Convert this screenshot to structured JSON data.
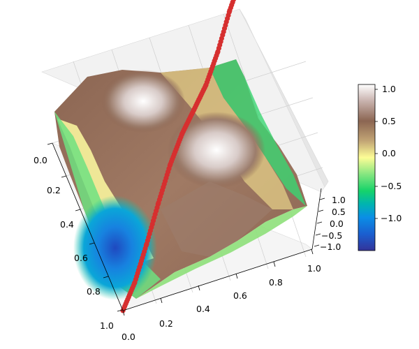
{
  "chart_data": {
    "type": "surface3d",
    "title": "",
    "surface": {
      "function": "sin(2*pi*x) * cos(2*pi*y) style terrain surface (triangulated, noisy)",
      "colormap": "terrain",
      "x_range": [
        0.0,
        1.0
      ],
      "y_range": [
        0.0,
        1.0
      ],
      "z_range": [
        -1.0,
        1.0
      ]
    },
    "curve": {
      "name": "red path",
      "color": "#d62f2f",
      "points": [
        [
          0.0,
          1.0,
          -1.0
        ],
        [
          0.1,
          0.9,
          -0.9
        ],
        [
          0.2,
          0.8,
          -0.6
        ],
        [
          0.3,
          0.7,
          -0.25
        ],
        [
          0.4,
          0.6,
          0.05
        ],
        [
          0.5,
          0.5,
          0.2
        ],
        [
          0.6,
          0.4,
          0.22
        ],
        [
          0.7,
          0.3,
          0.25
        ],
        [
          0.8,
          0.2,
          0.45
        ],
        [
          0.9,
          0.1,
          0.8
        ],
        [
          1.0,
          0.0,
          1.0
        ]
      ]
    },
    "axes": {
      "x_ticks": [
        "0.0",
        "0.2",
        "0.4",
        "0.6",
        "0.8",
        "1.0"
      ],
      "y_ticks": [
        "0.0",
        "0.2",
        "0.4",
        "0.6",
        "0.8",
        "1.0"
      ],
      "z_ticks": [
        "−1.0",
        "−0.5",
        "0.0",
        "0.5",
        "1.0"
      ],
      "xlabel": "",
      "ylabel": "",
      "zlabel": ""
    },
    "colorbar": {
      "ticks": [
        "1.0",
        "0.5",
        "0.0",
        "−0.5",
        "−1.0"
      ],
      "range": [
        -1.5,
        1.1
      ],
      "colors": [
        "#333399",
        "#0a8ee6",
        "#16d36a",
        "#7ee57e",
        "#fdfd96",
        "#c2a575",
        "#8b6552",
        "#b39590",
        "#ffffff"
      ]
    }
  }
}
